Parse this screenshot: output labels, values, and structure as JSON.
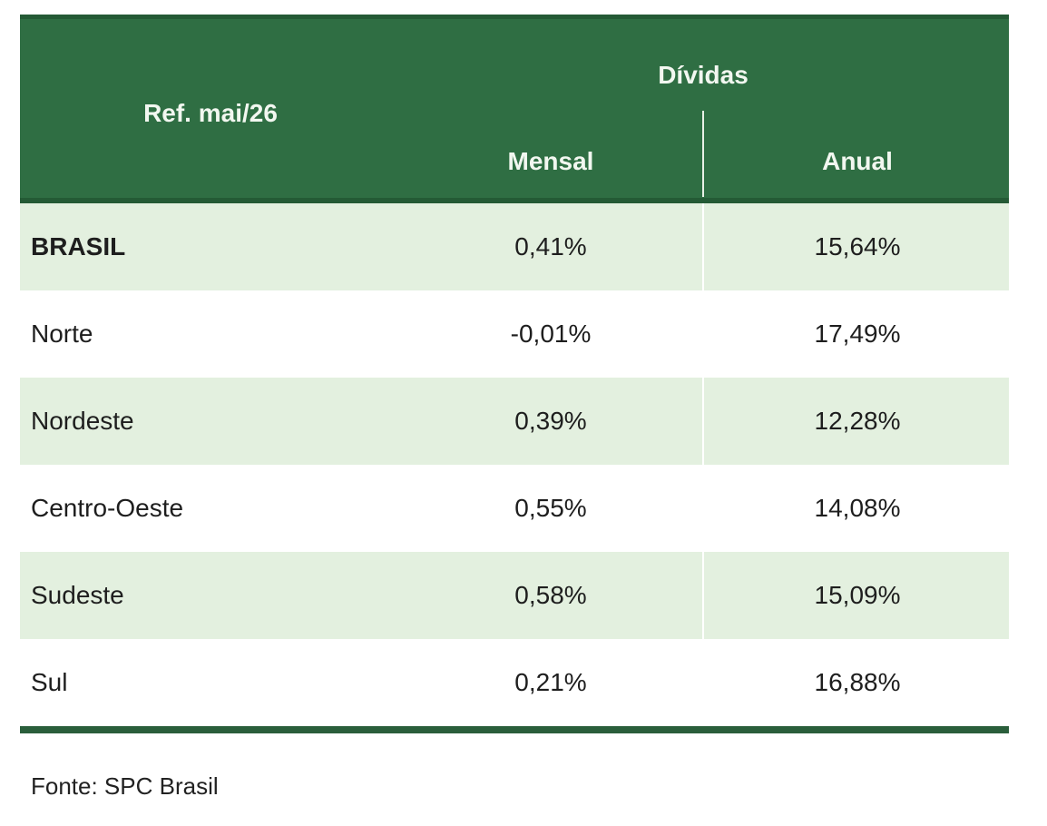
{
  "table": {
    "header": {
      "ref": "Ref. mai/26",
      "group": "Dívidas",
      "columns": [
        "Mensal",
        "Anual"
      ]
    },
    "rows": [
      [
        "BRASIL",
        "0,41%",
        "15,64%"
      ],
      [
        "Norte",
        "-0,01%",
        "17,49%"
      ],
      [
        "Nordeste",
        "0,39%",
        "12,28%"
      ],
      [
        "Centro-Oeste",
        "0,55%",
        "14,08%"
      ],
      [
        "Sudeste",
        "0,58%",
        "15,09%"
      ],
      [
        "Sul",
        "0,21%",
        "16,88%"
      ]
    ]
  },
  "source": "Fonte: SPC Brasil"
}
